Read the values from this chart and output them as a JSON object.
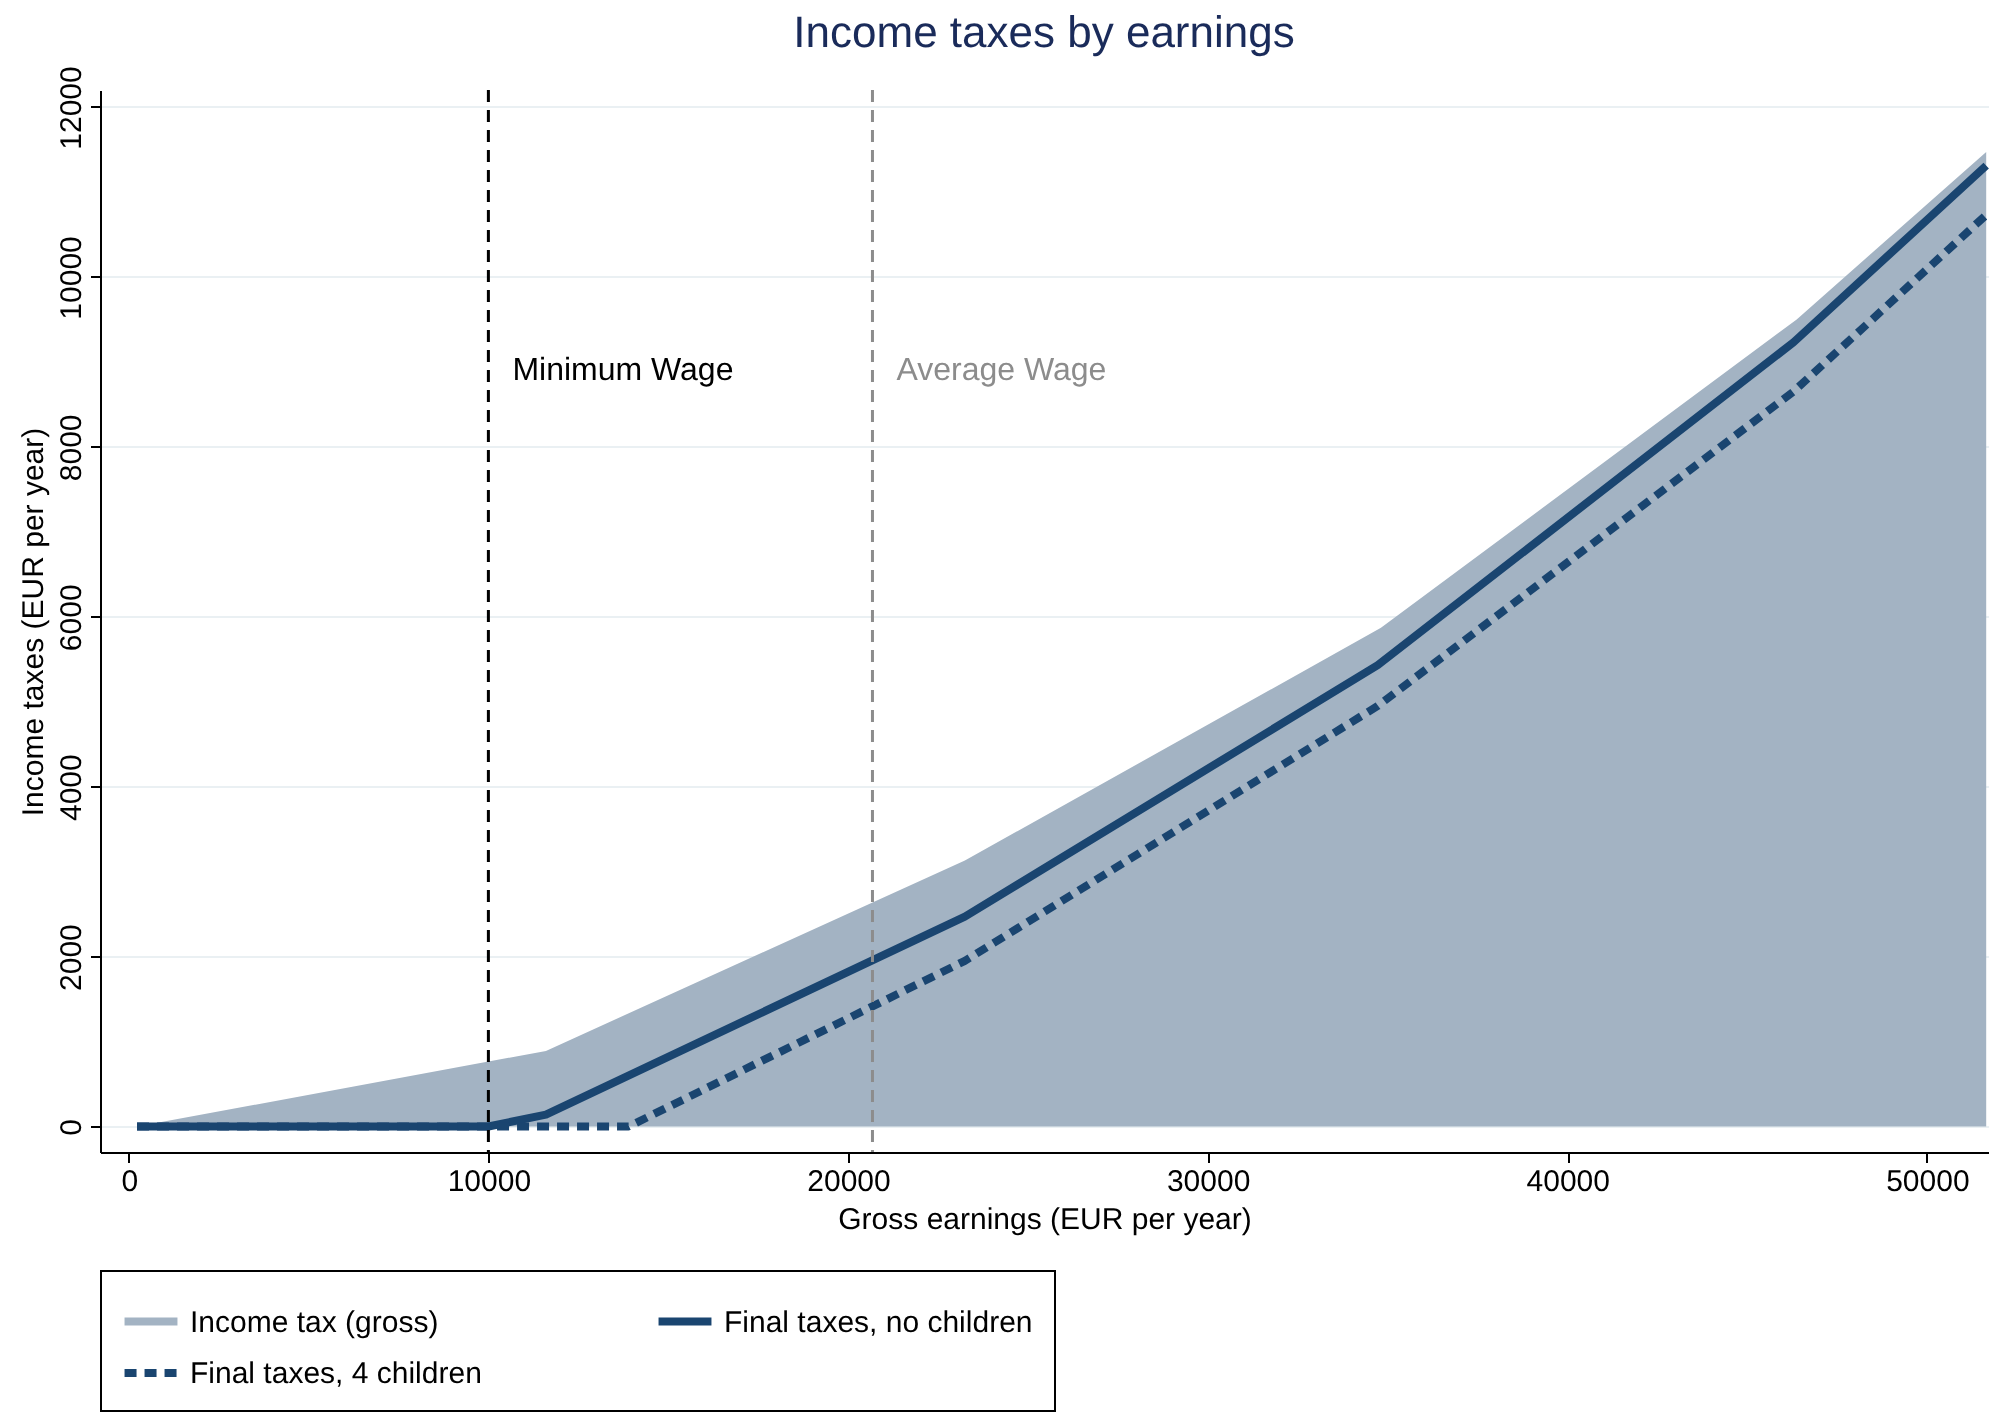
{
  "chart_data": {
    "type": "line",
    "title": "Income taxes by earnings",
    "xlabel": "Gross earnings (EUR per year)",
    "ylabel": "Income taxes (EUR per year)",
    "xlim": [
      -800,
      51700
    ],
    "ylim": [
      -300,
      12200
    ],
    "xticks": [
      0,
      10000,
      20000,
      30000,
      40000,
      50000
    ],
    "yticks": [
      0,
      2000,
      4000,
      6000,
      8000,
      10000,
      12000
    ],
    "grid": "y",
    "legend": "bottom",
    "marker": "none",
    "series": [
      {
        "name": "Income tax (gross)",
        "type": "area",
        "color": "#a3b3c3",
        "x": [
          230,
          11600,
          23250,
          34820,
          46380,
          51650
        ],
        "values": [
          0,
          890,
          3130,
          5870,
          9500,
          11470
        ]
      },
      {
        "name": "Final taxes, no children",
        "line_style": "solid",
        "color": "#1a4570",
        "x": [
          230,
          10000,
          11600,
          23250,
          34730,
          46290,
          51650
        ],
        "values": [
          0,
          0,
          140,
          2470,
          5430,
          9230,
          11310
        ]
      },
      {
        "name": "Final taxes, 4 children",
        "line_style": "dashed",
        "color": "#1a4570",
        "x": [
          230,
          13900,
          23250,
          34730,
          46290,
          51650
        ],
        "values": [
          0,
          0,
          1950,
          4950,
          8650,
          10730
        ]
      }
    ],
    "ref_lines": [
      {
        "axis": "x",
        "value": 10000,
        "label": "Minimum Wage",
        "color": "#000000",
        "line_style": "dashed"
      },
      {
        "axis": "x",
        "value": 20680,
        "label": "Average Wage",
        "color": "#8c8c8c",
        "line_style": "dashed"
      }
    ]
  }
}
